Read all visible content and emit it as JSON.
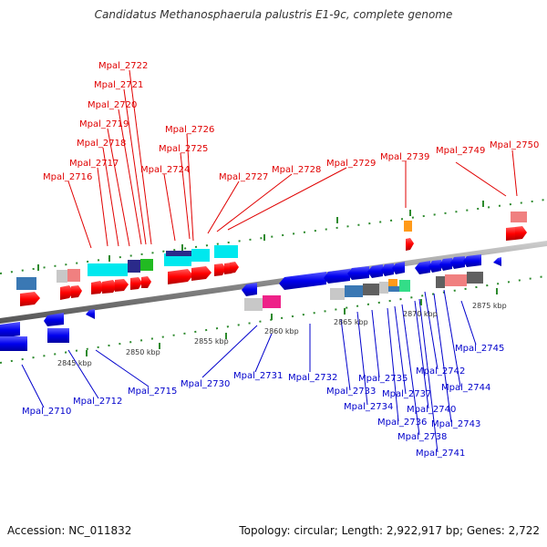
{
  "title": "Candidatus Methanosphaerula palustris E1-9c, complete genome",
  "accession": "Accession: NC_011832",
  "summary": "Topology: circular; Length: 2,922,917 bp; Genes: 2,722",
  "scale_labels": [
    "2845 kbp",
    "2850 kbp",
    "2855 kbp",
    "2860 kbp",
    "2865 kbp",
    "2870 kbp",
    "2875 kbp"
  ],
  "top_labels": [
    "Mpal_2722",
    "Mpal_2721",
    "Mpal_2720",
    "Mpal_2719",
    "Mpal_2718",
    "Mpal_2717",
    "Mpal_2716",
    "Mpal_2726",
    "Mpal_2725",
    "Mpal_2724",
    "Mpal_2727",
    "Mpal_2728",
    "Mpal_2729",
    "Mpal_2739",
    "Mpal_2749",
    "Mpal_2750"
  ],
  "bottom_labels": [
    "Mpal_2710",
    "Mpal_2712",
    "Mpal_2715",
    "Mpal_2730",
    "Mpal_2731",
    "Mpal_2732",
    "Mpal_2733",
    "Mpal_2734",
    "Mpal_2735",
    "Mpal_2736",
    "Mpal_2737",
    "Mpal_2738",
    "Mpal_2740",
    "Mpal_2741",
    "Mpal_2742",
    "Mpal_2743",
    "Mpal_2744",
    "Mpal_2745"
  ],
  "colors": {
    "top_label": "#e00000",
    "bottom_label": "#0000cc",
    "forward_gene": "#ff0000",
    "reverse_gene": "#0000ee",
    "backbone": "#888888",
    "tick": "#2d8a2d"
  }
}
